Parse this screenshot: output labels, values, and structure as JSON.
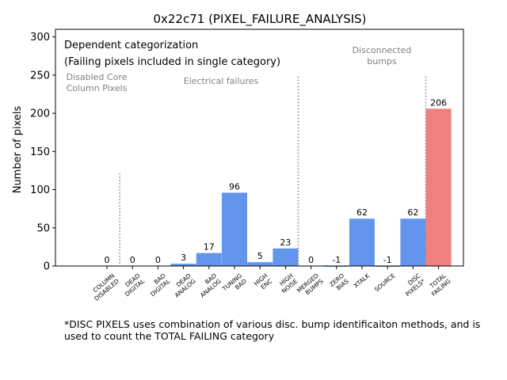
{
  "chart_data": {
    "type": "bar",
    "title": "0x22c71 (PIXEL_FAILURE_ANALYSIS)",
    "xlabel": "",
    "ylabel": "Number of pixels",
    "ylim": [
      0,
      310
    ],
    "yticks": [
      0,
      50,
      100,
      150,
      200,
      250,
      300
    ],
    "categories": [
      [
        "COLUMN",
        "DISABLED"
      ],
      [
        "DEAD",
        "DIGITAL"
      ],
      [
        "BAD",
        "DIGITAL"
      ],
      [
        "DEAD",
        "ANALOG"
      ],
      [
        "BAD",
        "ANALOG"
      ],
      [
        "TUNING",
        "BAD"
      ],
      [
        "HIGH",
        "ENC"
      ],
      [
        "HIGH",
        "NOISE"
      ],
      [
        "MERGED",
        "BUMPS"
      ],
      [
        "ZERO",
        "BIAS"
      ],
      [
        "XTALK"
      ],
      [
        "SOURCE"
      ],
      [
        "DISC",
        "PIXELS*"
      ],
      [
        "TOTAL",
        "FAILING"
      ]
    ],
    "values": [
      0,
      0,
      0,
      3,
      17,
      96,
      5,
      23,
      0,
      -1,
      62,
      -1,
      62,
      206
    ],
    "value_labels": [
      "0",
      "0",
      "0",
      "3",
      "17",
      "96",
      "5",
      "23",
      "0",
      "-1",
      "62",
      "-1",
      "62",
      "206"
    ],
    "bar_colors": [
      "#6495ED",
      "#6495ED",
      "#6495ED",
      "#6495ED",
      "#6495ED",
      "#6495ED",
      "#6495ED",
      "#6495ED",
      "#6495ED",
      "#6495ED",
      "#6495ED",
      "#6495ED",
      "#6495ED",
      "#F08080"
    ],
    "separators_after": [
      0,
      7,
      12
    ],
    "annotations": {
      "heading_line1": "Dependent categorization",
      "heading_line2": "(Failing pixels included in single category)",
      "disabled_core": [
        "Disabled Core",
        "Column Pixels"
      ],
      "electrical": "Electrical failures",
      "disconnected": [
        "Disconnected",
        "bumps"
      ]
    },
    "legend": "none",
    "grid": false
  },
  "footnote": "*DISC PIXELS uses combination of various disc. bump identificaiton methods, and is used to count the TOTAL FAILING category"
}
